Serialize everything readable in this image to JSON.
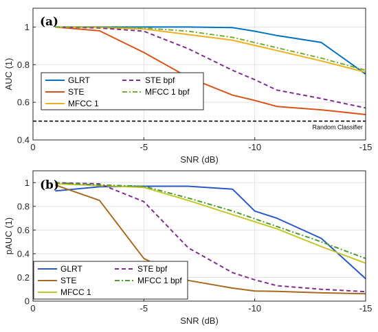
{
  "chart_data": [
    {
      "type": "line",
      "panel_label": "(a)",
      "xlabel": "SNR (dB)",
      "ylabel": "AUC (1)",
      "xlim": [
        0,
        -15
      ],
      "ylim": [
        0.4,
        1.1
      ],
      "xticks": [
        0,
        -5,
        -10,
        -15
      ],
      "xtick_labels": [
        "0",
        "-5",
        "-10",
        "-15"
      ],
      "yticks": [
        0.4,
        0.6,
        0.8,
        1.0
      ],
      "ytick_labels": [
        "0.4",
        "0.6",
        "0.8",
        "1"
      ],
      "grid": true,
      "legend_position": "lower-left",
      "series": [
        {
          "name": "GLRT",
          "color": "#0072BD",
          "dash": "solid",
          "x": [
            -1,
            -3,
            -5,
            -7,
            -9,
            -10,
            -11,
            -13,
            -15
          ],
          "y": [
            1.0,
            1.0,
            1.0,
            1.0,
            0.997,
            0.978,
            0.955,
            0.918,
            0.75
          ]
        },
        {
          "name": "STE",
          "color": "#D95319",
          "dash": "solid",
          "x": [
            -1,
            -3,
            -5,
            -7,
            -9,
            -10,
            -11,
            -13,
            -15
          ],
          "y": [
            1.0,
            0.98,
            0.865,
            0.733,
            0.638,
            0.61,
            0.578,
            0.56,
            0.535
          ]
        },
        {
          "name": "MFCC 1",
          "color": "#EDB120",
          "dash": "solid",
          "x": [
            -1,
            -3,
            -5,
            -7,
            -9,
            -11,
            -13,
            -15
          ],
          "y": [
            1.0,
            0.998,
            0.99,
            0.96,
            0.93,
            0.875,
            0.82,
            0.76
          ]
        },
        {
          "name": "STE bpf",
          "color": "#7E2F8E",
          "dash": "dashed",
          "x": [
            -1,
            -3,
            -5,
            -7,
            -9,
            -10,
            -11,
            -13,
            -15
          ],
          "y": [
            1.0,
            0.995,
            0.978,
            0.885,
            0.77,
            0.72,
            0.665,
            0.62,
            0.57
          ]
        },
        {
          "name": "MFCC 1 bpf",
          "color": "#77AC30",
          "dash": "dashdot",
          "x": [
            -1,
            -3,
            -5,
            -7,
            -9,
            -11,
            -13,
            -15
          ],
          "y": [
            1.0,
            1.0,
            0.995,
            0.978,
            0.945,
            0.89,
            0.835,
            0.77
          ]
        }
      ],
      "reference_lines": [
        {
          "name": "Random Classifier",
          "y": 0.5,
          "color": "#000000",
          "dash": "dashed"
        }
      ]
    },
    {
      "type": "line",
      "panel_label": "(b)",
      "xlabel": "SNR (dB)",
      "ylabel": "pAUC (1)",
      "xlim": [
        0,
        -15
      ],
      "ylim": [
        0,
        1.1
      ],
      "xticks": [
        0,
        -5,
        -10,
        -15
      ],
      "xtick_labels": [
        "0",
        "-5",
        "-10",
        "-15"
      ],
      "yticks": [
        0,
        0.2,
        0.4,
        0.6,
        0.8,
        1.0
      ],
      "ytick_labels": [
        "0",
        "0.2",
        "0.4",
        "0.6",
        "0.8",
        "1"
      ],
      "grid": true,
      "legend_position": "lower-left",
      "series": [
        {
          "name": "GLRT",
          "color": "#2858C8",
          "dash": "solid",
          "x": [
            -1,
            -3,
            -5,
            -7,
            -9,
            -10,
            -11,
            -13,
            -15
          ],
          "y": [
            0.93,
            0.965,
            0.97,
            0.97,
            0.945,
            0.76,
            0.7,
            0.53,
            0.19
          ]
        },
        {
          "name": "STE",
          "color": "#A66A1E",
          "dash": "solid",
          "x": [
            -1,
            -3,
            -5,
            -7,
            -9,
            -10,
            -11,
            -13,
            -15
          ],
          "y": [
            0.98,
            0.85,
            0.36,
            0.175,
            0.11,
            0.085,
            0.083,
            0.07,
            0.062
          ]
        },
        {
          "name": "MFCC 1",
          "color": "#C2C72A",
          "dash": "solid",
          "x": [
            -1,
            -3,
            -5,
            -7,
            -9,
            -11,
            -13,
            -15
          ],
          "y": [
            0.99,
            0.975,
            0.96,
            0.85,
            0.73,
            0.61,
            0.46,
            0.32
          ]
        },
        {
          "name": "STE bpf",
          "color": "#7E2F8E",
          "dash": "dashed",
          "x": [
            -1,
            -3,
            -5,
            -7,
            -9,
            -10,
            -11,
            -13,
            -15
          ],
          "y": [
            1.0,
            0.99,
            0.84,
            0.45,
            0.24,
            0.18,
            0.13,
            0.1,
            0.08
          ]
        },
        {
          "name": "MFCC 1 bpf",
          "color": "#4E9A2E",
          "dash": "dashdot",
          "x": [
            -1,
            -3,
            -5,
            -7,
            -9,
            -11,
            -13,
            -15
          ],
          "y": [
            1.0,
            0.98,
            0.97,
            0.87,
            0.76,
            0.63,
            0.5,
            0.36
          ]
        }
      ]
    }
  ]
}
